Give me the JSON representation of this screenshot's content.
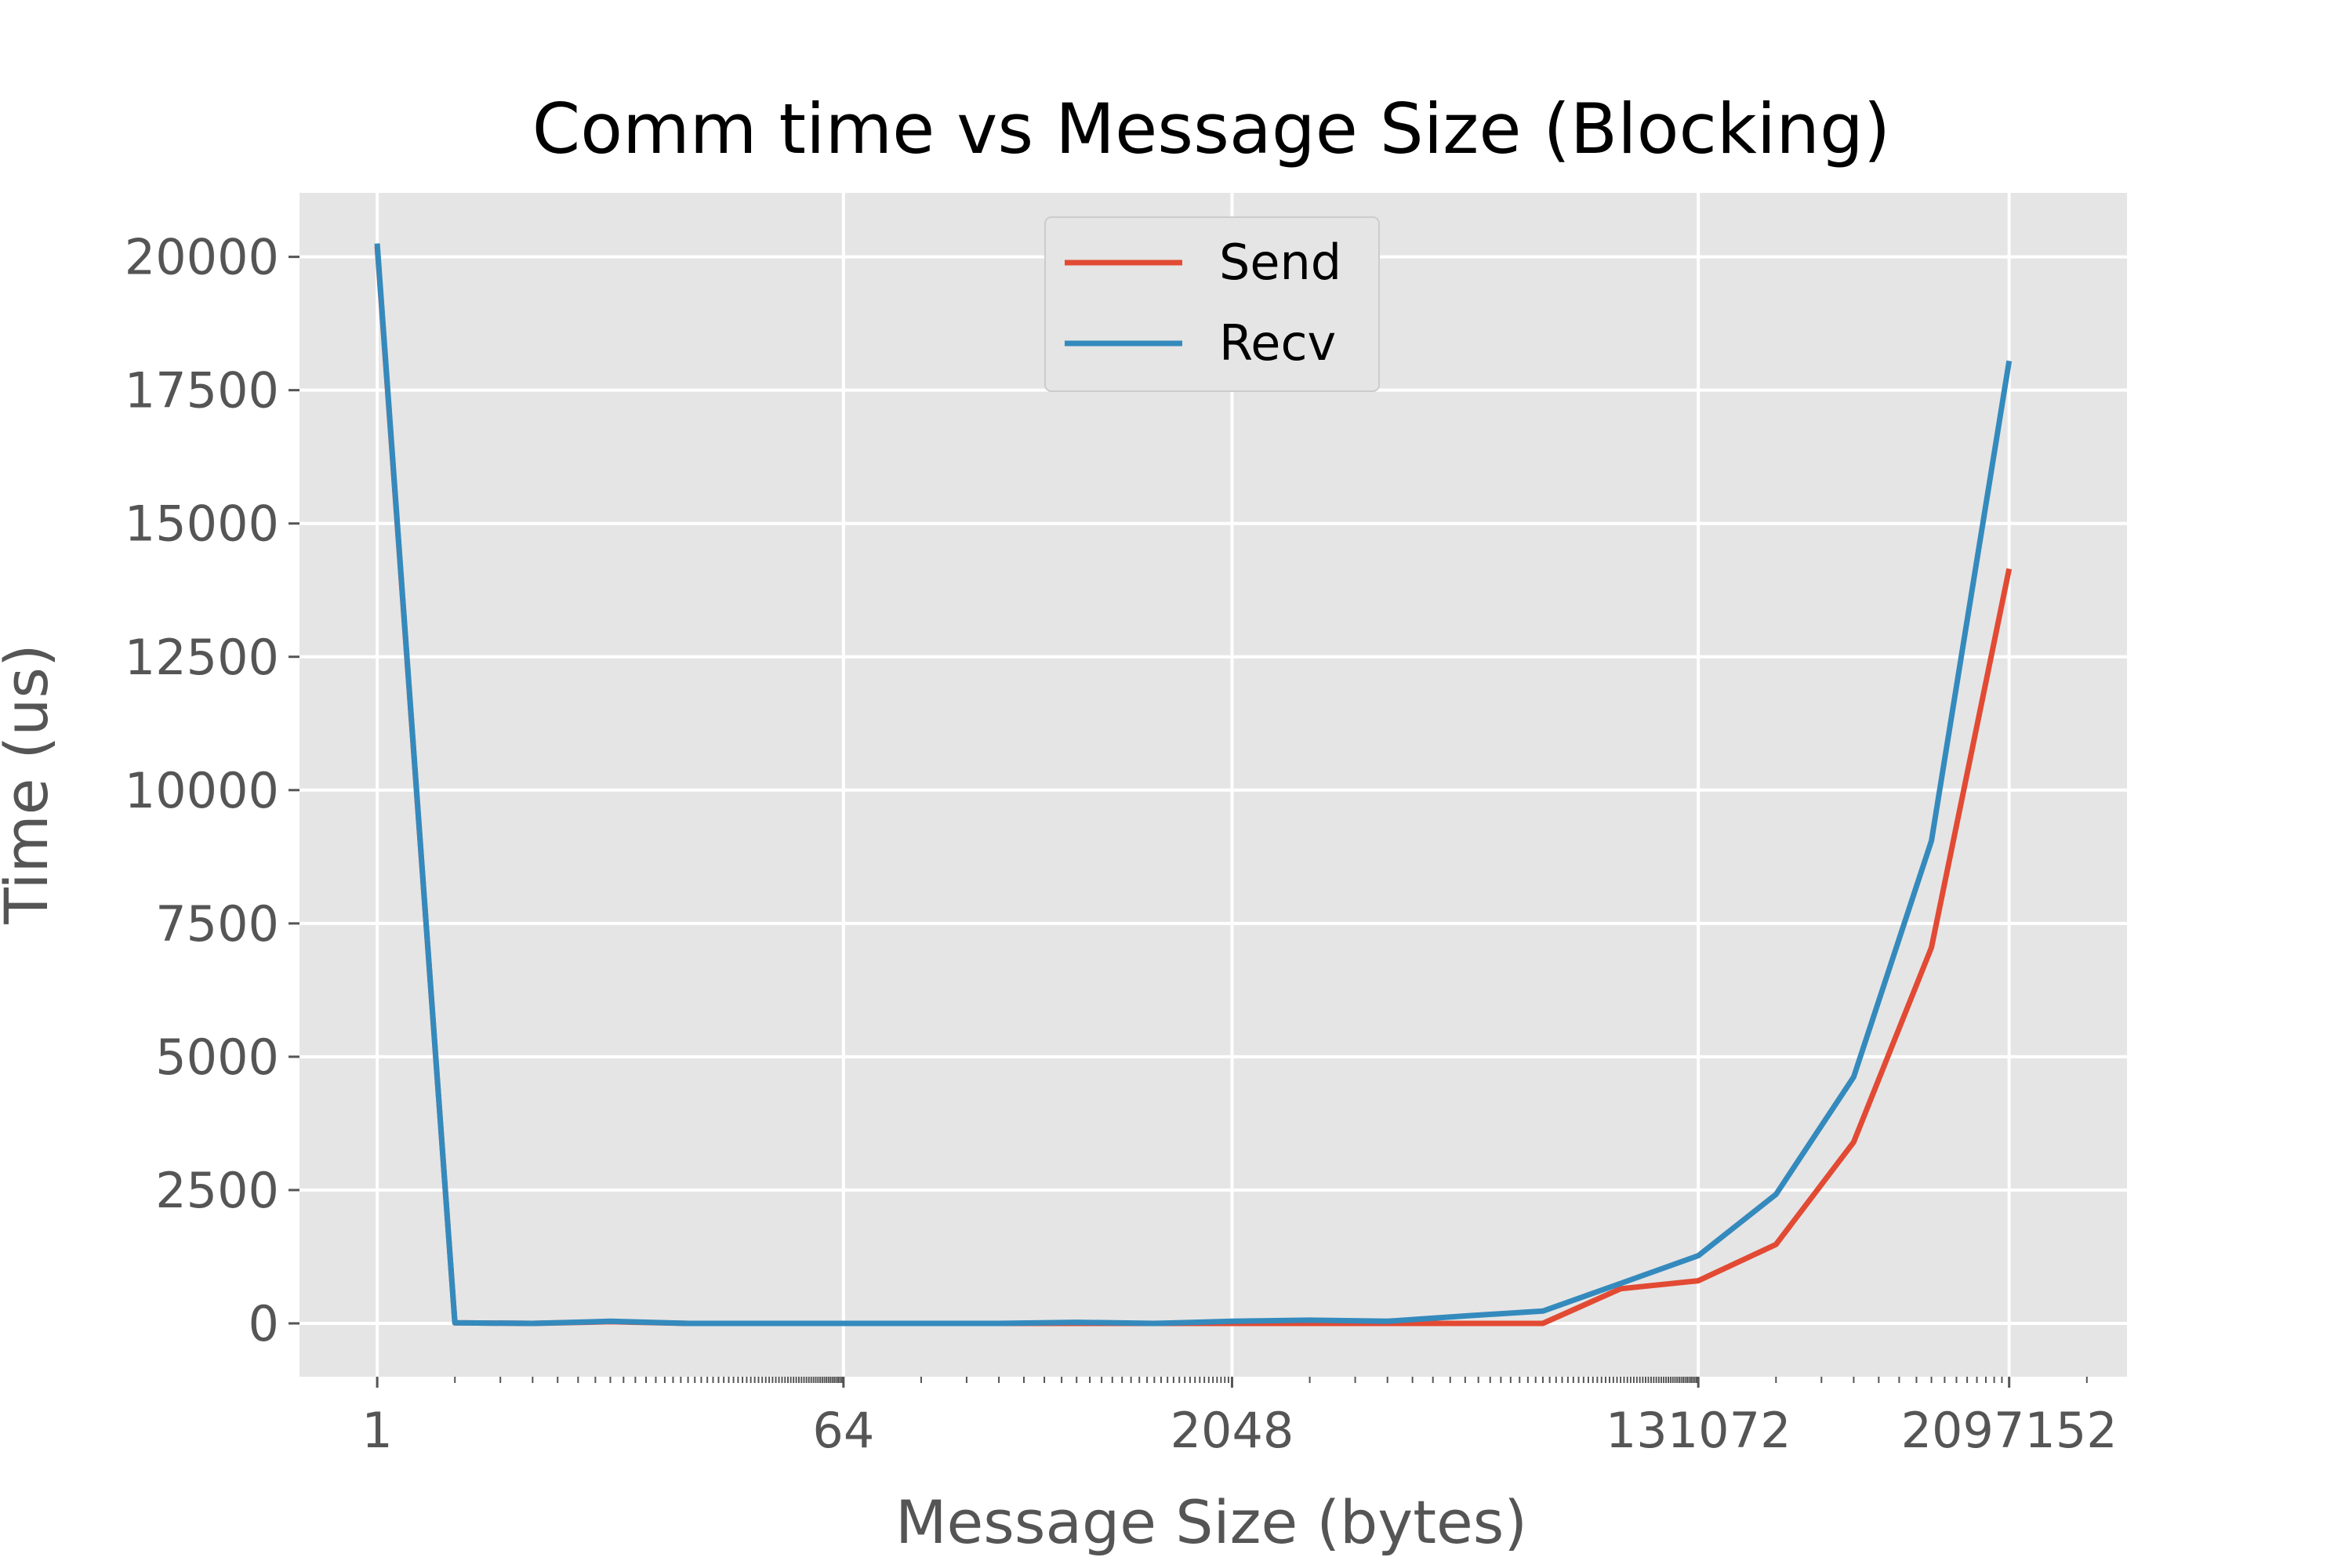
{
  "chart_data": {
    "type": "line",
    "title": "Comm time vs Message Size (Blocking)",
    "xlabel": "Message Size (bytes)",
    "ylabel": "Time (us)",
    "x_scale": "log2",
    "xlim": [
      0.5,
      6000000
    ],
    "ylim": [
      -1000,
      21200
    ],
    "x": [
      1,
      2,
      4,
      8,
      16,
      32,
      64,
      128,
      256,
      512,
      1024,
      2048,
      4096,
      8192,
      16384,
      32768,
      65536,
      131072,
      262144,
      524288,
      1048576,
      2097152
    ],
    "x_ticks": [
      {
        "value": 1,
        "label": "1"
      },
      {
        "value": 64,
        "label": "64"
      },
      {
        "value": 2048,
        "label": "2048"
      },
      {
        "value": 131072,
        "label": "131072"
      },
      {
        "value": 2097152,
        "label": "2097152"
      }
    ],
    "y_ticks": [
      {
        "value": 0,
        "label": "0"
      },
      {
        "value": 2500,
        "label": "2500"
      },
      {
        "value": 5000,
        "label": "5000"
      },
      {
        "value": 7500,
        "label": "7500"
      },
      {
        "value": 10000,
        "label": "10000"
      },
      {
        "value": 12500,
        "label": "12500"
      },
      {
        "value": 15000,
        "label": "15000"
      },
      {
        "value": 17500,
        "label": "17500"
      },
      {
        "value": 20000,
        "label": "20000"
      }
    ],
    "series": [
      {
        "name": "Send",
        "color": "#e24a33",
        "values": [
          20200,
          10,
          0,
          30,
          0,
          0,
          0,
          0,
          0,
          0,
          0,
          0,
          0,
          0,
          0,
          0,
          650,
          800,
          1480,
          3400,
          7050,
          14150
        ]
      },
      {
        "name": "Recv",
        "color": "#348abd",
        "values": [
          20250,
          10,
          0,
          40,
          0,
          0,
          0,
          0,
          0,
          20,
          0,
          40,
          60,
          40,
          140,
          230,
          750,
          1270,
          2420,
          4620,
          9050,
          18050
        ]
      }
    ],
    "grid": true,
    "background": "#e5e5e5",
    "legend_position": "top-center"
  }
}
